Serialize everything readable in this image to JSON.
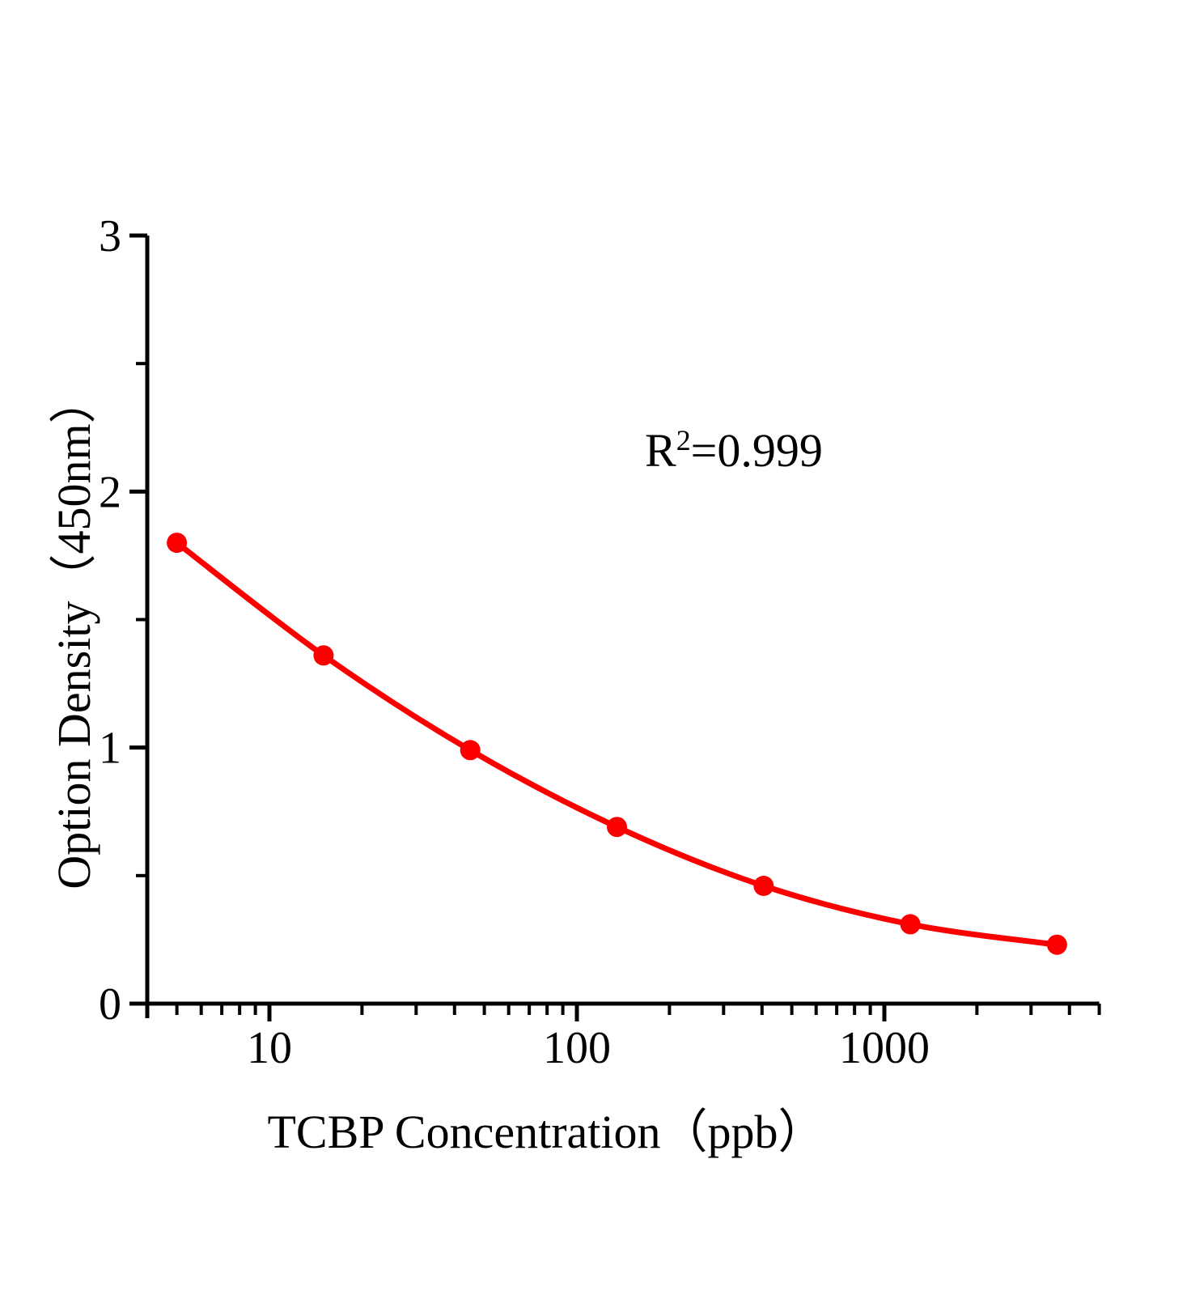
{
  "chart_data": {
    "type": "scatter",
    "title": "",
    "x": [
      5,
      15,
      45,
      135,
      405,
      1215,
      3645
    ],
    "y": [
      1.8,
      1.36,
      0.99,
      0.69,
      0.46,
      0.31,
      0.23
    ],
    "xlabel": "TCBP Concentration（ppb）",
    "ylabel": "Option Density（450nm）",
    "x_scale": "log10",
    "xlim": [
      4,
      5000
    ],
    "ylim": [
      0,
      3
    ],
    "x_major_ticks": [
      {
        "value": 10,
        "label": "10"
      },
      {
        "value": 100,
        "label": "100"
      },
      {
        "value": 1000,
        "label": "1000"
      }
    ],
    "x_minor_ticks": [
      5,
      6,
      7,
      8,
      9,
      20,
      30,
      40,
      50,
      60,
      70,
      80,
      90,
      200,
      300,
      400,
      500,
      600,
      700,
      800,
      900,
      2000,
      3000,
      4000,
      5000
    ],
    "y_major_ticks": [
      {
        "value": 0,
        "label": "0"
      },
      {
        "value": 1,
        "label": "1"
      },
      {
        "value": 2,
        "label": "2"
      },
      {
        "value": 3,
        "label": "3"
      }
    ],
    "y_minor_ticks": [
      0.5,
      1.5,
      2.5
    ],
    "annotation": {
      "base": "R",
      "exponent": "2",
      "rest": "=0.999"
    },
    "colors": {
      "series": "#fa0000",
      "axis": "#000000",
      "background": "#ffffff"
    },
    "grid": false,
    "legend": null,
    "curve": "smooth-through-points",
    "marker": "filled-circle"
  }
}
